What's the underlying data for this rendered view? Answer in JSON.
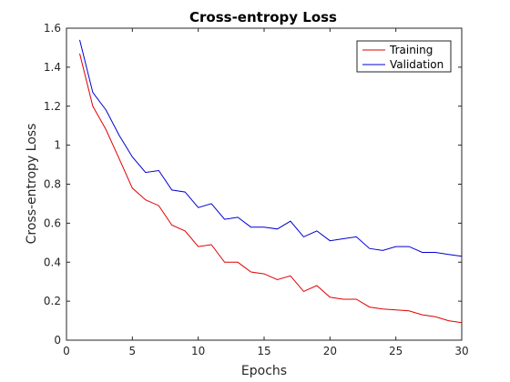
{
  "chart_data": {
    "type": "line",
    "title": "Cross-entropy Loss",
    "xlabel": "Epochs",
    "ylabel": "Cross-entropy Loss",
    "xlim": [
      0,
      30
    ],
    "ylim": [
      0,
      1.6
    ],
    "xticks": [
      0,
      5,
      10,
      15,
      20,
      25,
      30
    ],
    "yticks": [
      0,
      0.2,
      0.4,
      0.6,
      0.8,
      1,
      1.2,
      1.4,
      1.6
    ],
    "xtick_labels": [
      "0",
      "5",
      "10",
      "15",
      "20",
      "25",
      "30"
    ],
    "ytick_labels": [
      "0",
      "0.2",
      "0.4",
      "0.6",
      "0.8",
      "1",
      "1.2",
      "1.4",
      "1.6"
    ],
    "grid": false,
    "legend": "top-right",
    "x": [
      1,
      2,
      3,
      4,
      5,
      6,
      7,
      8,
      9,
      10,
      11,
      12,
      13,
      14,
      15,
      16,
      17,
      18,
      19,
      20,
      21,
      22,
      23,
      24,
      25,
      26,
      27,
      28,
      29,
      30
    ],
    "series": [
      {
        "name": "Training",
        "color": "#e00000",
        "values": [
          1.47,
          1.2,
          1.08,
          0.93,
          0.78,
          0.72,
          0.69,
          0.59,
          0.56,
          0.48,
          0.49,
          0.4,
          0.4,
          0.35,
          0.34,
          0.31,
          0.33,
          0.25,
          0.28,
          0.22,
          0.21,
          0.21,
          0.17,
          0.16,
          0.155,
          0.15,
          0.13,
          0.12,
          0.1,
          0.09
        ]
      },
      {
        "name": "Validation",
        "color": "#0000d0",
        "values": [
          1.54,
          1.27,
          1.18,
          1.05,
          0.94,
          0.86,
          0.87,
          0.77,
          0.76,
          0.68,
          0.7,
          0.62,
          0.63,
          0.58,
          0.58,
          0.57,
          0.61,
          0.53,
          0.56,
          0.51,
          0.52,
          0.53,
          0.47,
          0.46,
          0.48,
          0.48,
          0.45,
          0.45,
          0.44,
          0.43
        ]
      }
    ]
  }
}
